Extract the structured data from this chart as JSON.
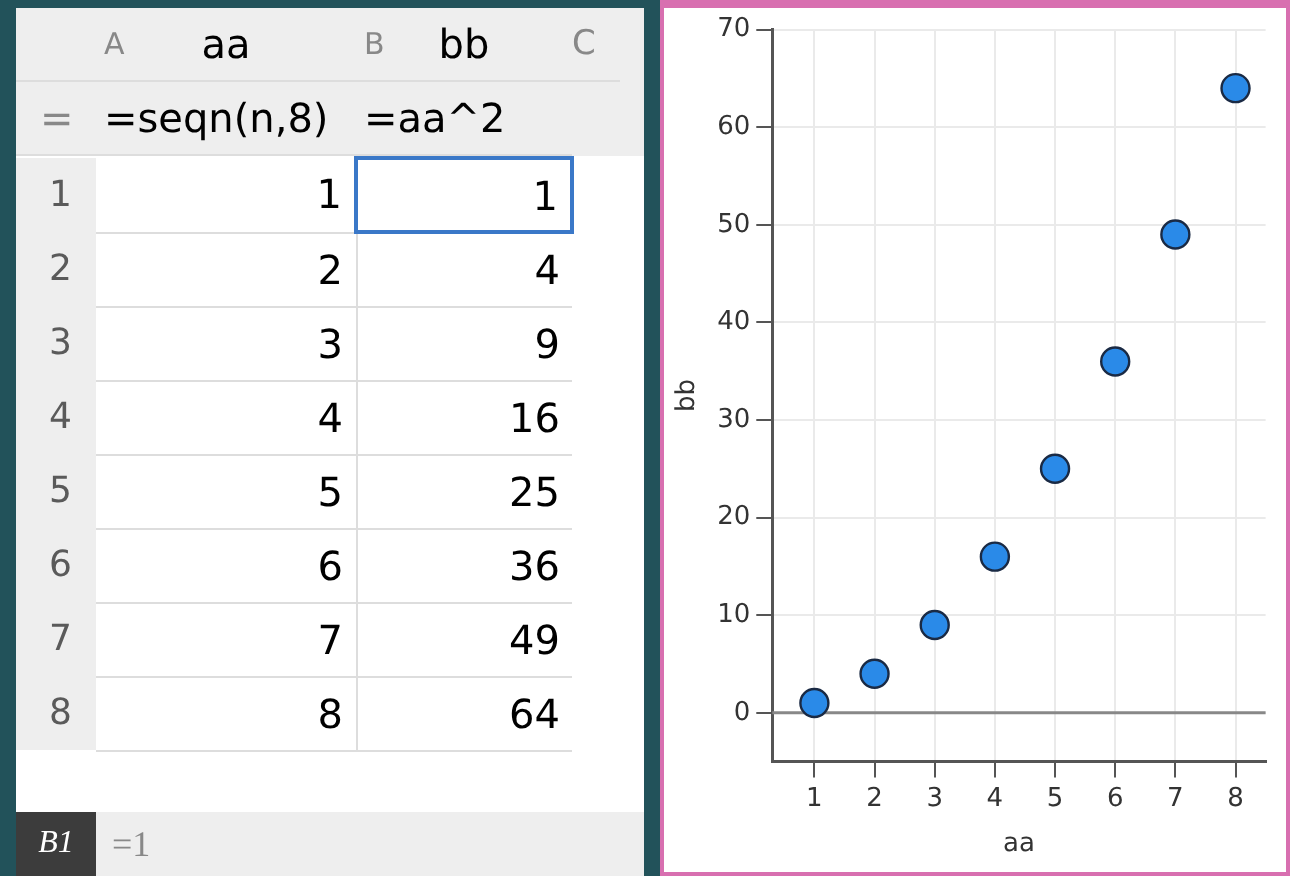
{
  "chart_data": [
    {
      "type": "heatmap",
      "categories": [
        "aa",
        "bb"
      ],
      "y_categories": [
        "1",
        "2",
        "3",
        "4",
        "5",
        "6",
        "7",
        "8"
      ],
      "cells": [
        [
          1,
          1
        ],
        [
          2,
          4
        ],
        [
          3,
          9
        ],
        [
          4,
          16
        ],
        [
          5,
          25
        ],
        [
          6,
          36
        ],
        [
          7,
          49
        ],
        [
          8,
          64
        ]
      ],
      "data_labels": true,
      "annotations": [
        "A",
        "B",
        "C",
        "=",
        "=seqn(n,8)",
        "=aa^2",
        "B1",
        "=1"
      ]
    },
    {
      "type": "scatter",
      "xlabel": "aa",
      "ylabel": "bb",
      "x": [
        1,
        2,
        3,
        4,
        5,
        6,
        7,
        8
      ],
      "values": [
        1,
        4,
        9,
        16,
        25,
        36,
        49,
        64
      ],
      "color": "#2a8ae8",
      "marker": "circle",
      "xlim": [
        0.3,
        8.5
      ],
      "xticks": [
        1,
        2,
        3,
        4,
        5,
        6,
        7,
        8
      ],
      "ylim": [
        -5,
        70
      ],
      "yticks": [
        0,
        10,
        20,
        30,
        40,
        50,
        60,
        70
      ],
      "grid": true,
      "ref_lines": [
        {
          "axis": "y",
          "value": 0,
          "color": "#888888"
        }
      ]
    }
  ]
}
